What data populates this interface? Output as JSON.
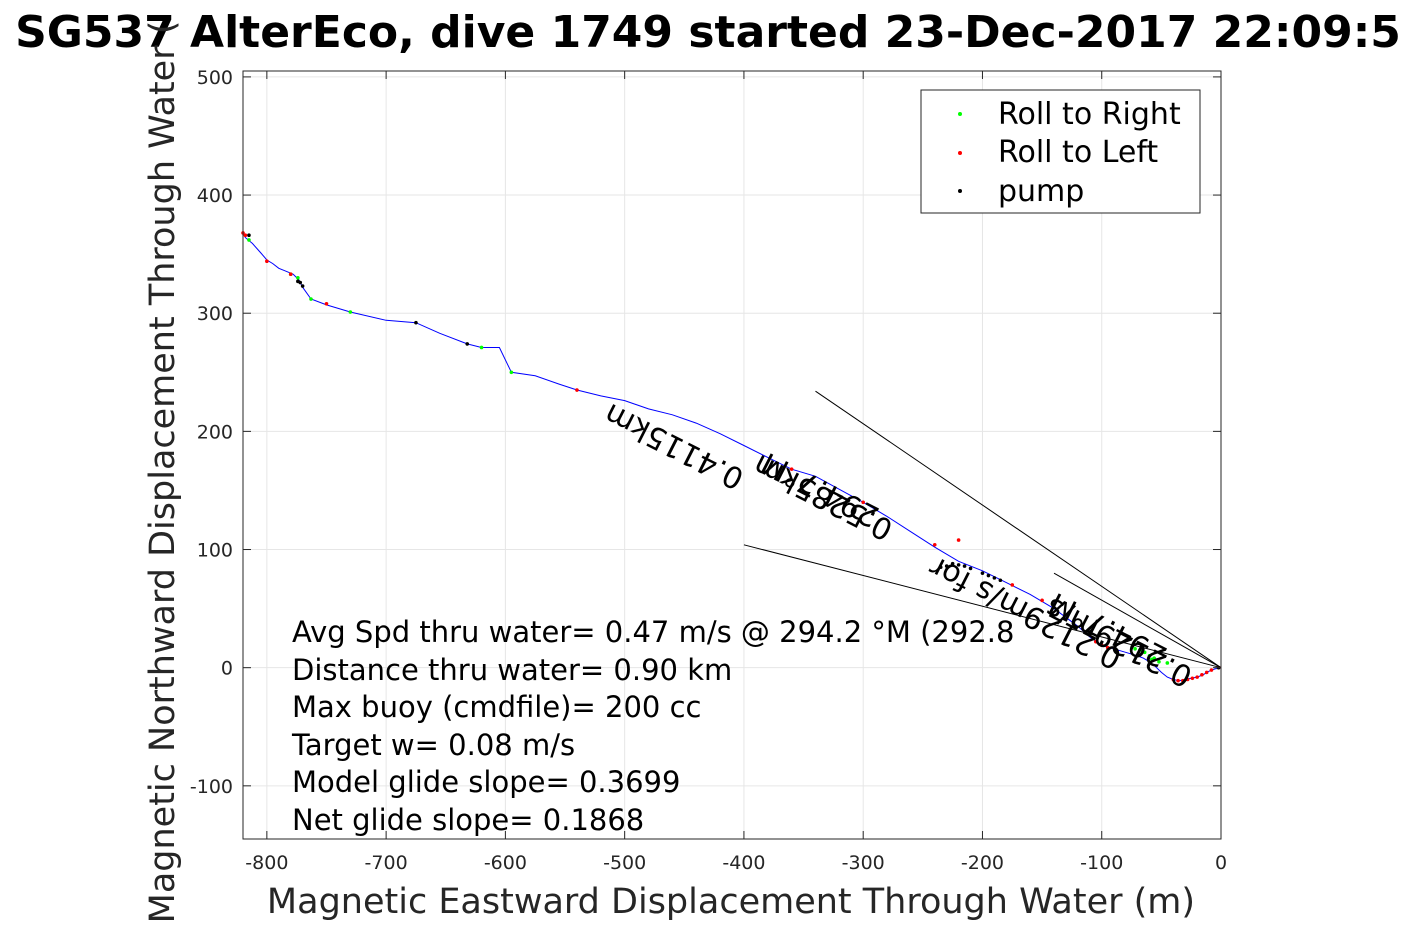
{
  "chart_data": {
    "type": "scatter",
    "title": "SG537 AlterEco, dive 1749 started 23-Dec-2017 22:09:5",
    "xlabel": "Magnetic Eastward Displacement Through Water (m)",
    "ylabel": "Magnetic Northward Displacement Through Water (",
    "xlim": [
      -820,
      0
    ],
    "ylim": [
      -145,
      505
    ],
    "xticks": [
      -800,
      -700,
      -600,
      -500,
      -400,
      -300,
      -200,
      -100,
      0
    ],
    "yticks": [
      -100,
      0,
      100,
      200,
      300,
      400,
      500
    ],
    "grid": true,
    "legend": {
      "placement": "top-right",
      "entries": [
        {
          "label": "Roll to Right",
          "color": "#00ff00"
        },
        {
          "label": "Roll to Left",
          "color": "#ff0000"
        },
        {
          "label": "pump",
          "color": "#000000"
        }
      ]
    },
    "track_color": "#0000ff",
    "track": [
      [
        0,
        0
      ],
      [
        -5,
        -1
      ],
      [
        -10,
        -3
      ],
      [
        -15,
        -6
      ],
      [
        -20,
        -8
      ],
      [
        -25,
        -9
      ],
      [
        -30,
        -10
      ],
      [
        -35,
        -11
      ],
      [
        -40,
        -10
      ],
      [
        -45,
        -8
      ],
      [
        -50,
        -4
      ],
      [
        -55,
        1
      ],
      [
        -60,
        5
      ],
      [
        -65,
        8
      ],
      [
        -70,
        10
      ],
      [
        -80,
        13
      ],
      [
        -90,
        16
      ],
      [
        -100,
        19
      ],
      [
        -110,
        26
      ],
      [
        -120,
        35
      ],
      [
        -140,
        50
      ],
      [
        -160,
        62
      ],
      [
        -180,
        72
      ],
      [
        -200,
        82
      ],
      [
        -220,
        90
      ],
      [
        -240,
        102
      ],
      [
        -260,
        115
      ],
      [
        -280,
        128
      ],
      [
        -300,
        140
      ],
      [
        -320,
        151
      ],
      [
        -340,
        162
      ],
      [
        -360,
        168
      ],
      [
        -380,
        178
      ],
      [
        -400,
        188
      ],
      [
        -420,
        198
      ],
      [
        -440,
        207
      ],
      [
        -460,
        214
      ],
      [
        -480,
        219
      ],
      [
        -500,
        226
      ],
      [
        -520,
        230
      ],
      [
        -540,
        235
      ],
      [
        -555,
        240
      ],
      [
        -575,
        247
      ],
      [
        -595,
        250
      ],
      [
        -605,
        271
      ],
      [
        -620,
        271
      ],
      [
        -632,
        274
      ],
      [
        -655,
        283
      ],
      [
        -675,
        292
      ],
      [
        -700,
        294
      ],
      [
        -730,
        301
      ],
      [
        -750,
        307
      ],
      [
        -763,
        312
      ],
      [
        -770,
        322
      ],
      [
        -773,
        328
      ],
      [
        -778,
        333
      ],
      [
        -785,
        336
      ],
      [
        -790,
        338
      ],
      [
        -795,
        342
      ],
      [
        -800,
        345
      ],
      [
        -805,
        351
      ],
      [
        -812,
        359
      ],
      [
        -818,
        364
      ],
      [
        -820,
        368
      ]
    ],
    "roll_right": [
      [
        -45,
        4
      ],
      [
        -52,
        5
      ],
      [
        -56,
        8
      ],
      [
        -60,
        10
      ],
      [
        -64,
        13
      ],
      [
        -68,
        15
      ],
      [
        -72,
        16
      ],
      [
        -58,
        7
      ],
      [
        -620,
        271
      ],
      [
        -595,
        250
      ],
      [
        -730,
        301
      ],
      [
        -763,
        312
      ],
      [
        -774,
        330
      ],
      [
        -780,
        333
      ],
      [
        -815,
        362
      ]
    ],
    "roll_left": [
      [
        -2,
        0
      ],
      [
        -8,
        -2
      ],
      [
        -12,
        -4
      ],
      [
        -16,
        -6
      ],
      [
        -20,
        -8
      ],
      [
        -24,
        -9
      ],
      [
        -28,
        -10
      ],
      [
        -32,
        -11
      ],
      [
        -36,
        -11
      ],
      [
        -40,
        -10
      ],
      [
        -95,
        17
      ],
      [
        -100,
        19
      ],
      [
        -105,
        22
      ],
      [
        -150,
        57
      ],
      [
        -175,
        70
      ],
      [
        -220,
        108
      ],
      [
        -240,
        104
      ],
      [
        -300,
        140
      ],
      [
        -360,
        168
      ],
      [
        -540,
        235
      ],
      [
        -750,
        308
      ],
      [
        -780,
        333
      ],
      [
        -800,
        344
      ],
      [
        -818,
        366
      ],
      [
        -820,
        368
      ]
    ],
    "pump": [
      [
        -185,
        74
      ],
      [
        -190,
        76
      ],
      [
        -195,
        78
      ],
      [
        -200,
        80
      ],
      [
        -210,
        84
      ],
      [
        -215,
        86
      ],
      [
        -220,
        87
      ],
      [
        -225,
        88
      ],
      [
        -230,
        86
      ],
      [
        -235,
        85
      ],
      [
        -632,
        274
      ],
      [
        -675,
        292
      ],
      [
        -770,
        323
      ],
      [
        -772,
        326
      ],
      [
        -774,
        327
      ],
      [
        -815,
        366
      ],
      [
        -2,
        0
      ]
    ],
    "heading_lines": [
      {
        "from": [
          0,
          0
        ],
        "to": [
          -340,
          234
        ]
      },
      {
        "from": [
          0,
          0
        ],
        "to": [
          -400,
          104
        ]
      },
      {
        "from": [
          0,
          0
        ],
        "to": [
          -140,
          80
        ]
      }
    ],
    "annotations": [
      {
        "text": "0.4115km",
        "rotate": 207
      },
      {
        "text": "0.5285km",
        "rotate": 207
      },
      {
        "text": "294.7°M",
        "rotate": 207
      },
      {
        "text": "0.2129m/s for",
        "rotate": 207
      },
      {
        "text": "0.2129m/s",
        "rotate": 207
      },
      {
        "text": "294.7°M",
        "rotate": 207
      }
    ],
    "stats": [
      "Avg Spd thru water=  0.47 m/s @ 294.2 °M (292.8",
      "Distance thru water=  0.90 km",
      "Max buoy (cmdfile)= 200 cc",
      "Target w= 0.08 m/s",
      "Model glide slope= 0.3699",
      "Net glide slope= 0.1868"
    ]
  }
}
